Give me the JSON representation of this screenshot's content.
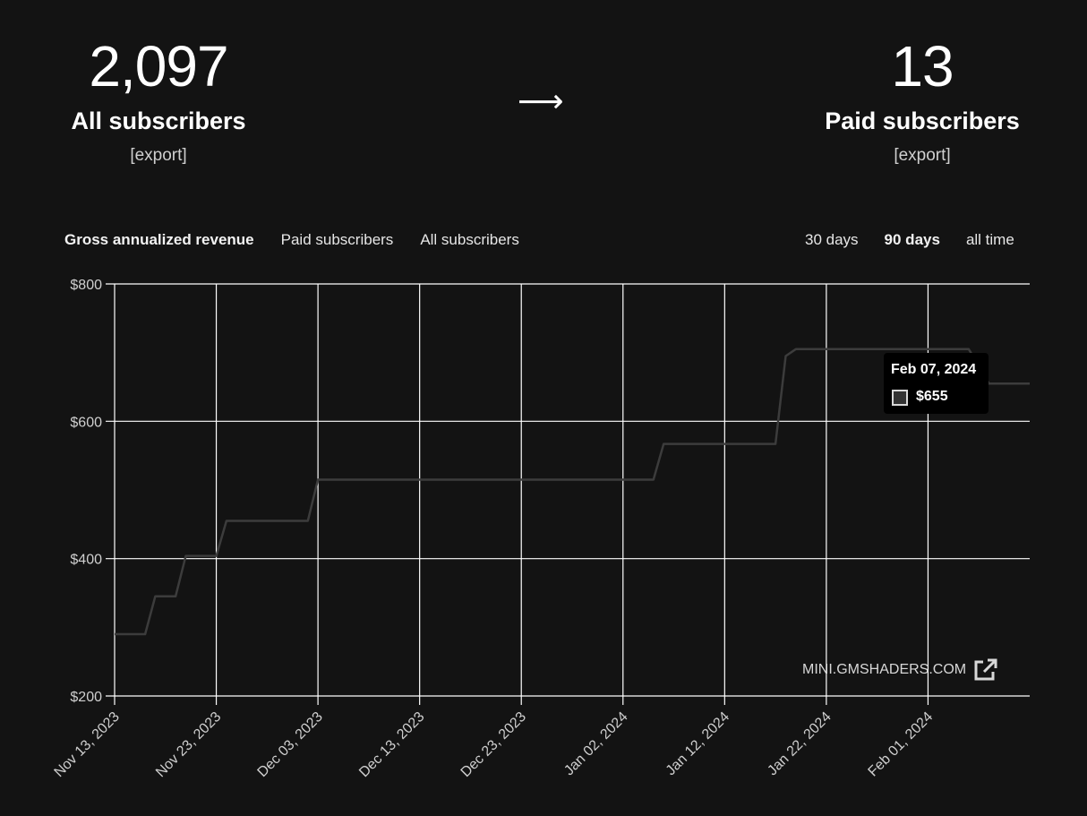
{
  "stats": {
    "all": {
      "value": "2,097",
      "label": "All subscribers",
      "export_label": "[export]"
    },
    "arrow": "⟶",
    "paid": {
      "value": "13",
      "label": "Paid subscribers",
      "export_label": "[export]"
    }
  },
  "metric_tabs": [
    {
      "label": "Gross annualized revenue",
      "active": true
    },
    {
      "label": "Paid subscribers",
      "active": false
    },
    {
      "label": "All subscribers",
      "active": false
    }
  ],
  "range_tabs": [
    {
      "label": "30 days",
      "active": false
    },
    {
      "label": "90 days",
      "active": true
    },
    {
      "label": "all time",
      "active": false
    }
  ],
  "tooltip": {
    "date": "Feb 07, 2024",
    "value": "$655"
  },
  "watermark": {
    "text": "MINI.GMSHADERS.COM",
    "icon": "external-link-icon"
  },
  "colors": {
    "background": "#131313",
    "line": "#3c3c3c",
    "grid": "#ffffff"
  },
  "chart_data": {
    "type": "line",
    "x_labels": [
      "Nov 13, 2023",
      "Nov 23, 2023",
      "Dec 03, 2023",
      "Dec 13, 2023",
      "Dec 23, 2023",
      "Jan 02, 2024",
      "Jan 12, 2024",
      "Jan 22, 2024",
      "Feb 01, 2024"
    ],
    "y_labels": [
      "$800",
      "$600",
      "$400",
      "$200"
    ],
    "y_ticks": [
      800,
      600,
      400,
      200
    ],
    "ylim": [
      200,
      800
    ],
    "xlim": [
      "2023-11-13",
      "2024-02-11"
    ],
    "grid": true,
    "series": [
      {
        "points": [
          [
            "2023-11-13",
            290
          ],
          [
            "2023-11-16",
            290
          ],
          [
            "2023-11-17",
            345
          ],
          [
            "2023-11-19",
            345
          ],
          [
            "2023-11-20",
            404
          ],
          [
            "2023-11-23",
            404
          ],
          [
            "2023-11-24",
            455
          ],
          [
            "2023-12-02",
            455
          ],
          [
            "2023-12-03",
            515
          ],
          [
            "2024-01-05",
            515
          ],
          [
            "2024-01-06",
            567
          ],
          [
            "2024-01-17",
            567
          ],
          [
            "2024-01-18",
            695
          ],
          [
            "2024-01-19",
            705
          ],
          [
            "2024-02-05",
            705
          ],
          [
            "2024-02-07",
            655
          ],
          [
            "2024-02-11",
            655
          ]
        ]
      }
    ]
  }
}
